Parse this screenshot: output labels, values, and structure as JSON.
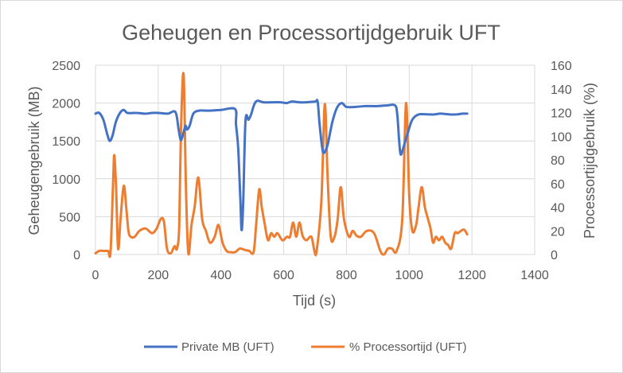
{
  "chart_data": {
    "type": "line",
    "title": "Geheugen en Processortijdgebruik UFT",
    "xlabel": "Tijd (s)",
    "ylabel": "Geheugengebruik (MB)",
    "y2label": "Processortijdgebruik (%)",
    "xlim": [
      0,
      1400
    ],
    "ylim": [
      0,
      2500
    ],
    "y2lim": [
      0,
      160
    ],
    "xticks": [
      "0",
      "200",
      "400",
      "600",
      "800",
      "1000",
      "1200",
      "1400"
    ],
    "yticks": [
      "0",
      "500",
      "1000",
      "1500",
      "2000",
      "2500"
    ],
    "y2ticks": [
      "0",
      "20",
      "40",
      "60",
      "80",
      "100",
      "120",
      "140",
      "160"
    ],
    "grid": true,
    "legend_position": "bottom",
    "series": [
      {
        "name": "Private MB (UFT)",
        "axis": "left",
        "color": "#4472c4",
        "points": [
          [
            0,
            1860
          ],
          [
            12,
            1870
          ],
          [
            25,
            1780
          ],
          [
            38,
            1580
          ],
          [
            46,
            1500
          ],
          [
            55,
            1580
          ],
          [
            65,
            1750
          ],
          [
            78,
            1870
          ],
          [
            90,
            1910
          ],
          [
            102,
            1870
          ],
          [
            130,
            1870
          ],
          [
            160,
            1860
          ],
          [
            180,
            1870
          ],
          [
            200,
            1870
          ],
          [
            230,
            1860
          ],
          [
            255,
            1880
          ],
          [
            265,
            1650
          ],
          [
            272,
            1510
          ],
          [
            280,
            1600
          ],
          [
            287,
            1700
          ],
          [
            292,
            1650
          ],
          [
            300,
            1700
          ],
          [
            312,
            1860
          ],
          [
            330,
            1900
          ],
          [
            360,
            1900
          ],
          [
            400,
            1910
          ],
          [
            445,
            1920
          ],
          [
            448,
            1720
          ],
          [
            455,
            1400
          ],
          [
            462,
            700
          ],
          [
            466,
            320
          ],
          [
            471,
            700
          ],
          [
            478,
            1760
          ],
          [
            488,
            1780
          ],
          [
            496,
            1850
          ],
          [
            506,
            1980
          ],
          [
            516,
            2030
          ],
          [
            535,
            2010
          ],
          [
            560,
            2010
          ],
          [
            590,
            2010
          ],
          [
            610,
            2000
          ],
          [
            625,
            2020
          ],
          [
            650,
            2010
          ],
          [
            670,
            2010
          ],
          [
            700,
            2020
          ],
          [
            708,
            2020
          ],
          [
            714,
            1740
          ],
          [
            722,
            1430
          ],
          [
            728,
            1340
          ],
          [
            740,
            1450
          ],
          [
            755,
            1750
          ],
          [
            770,
            1940
          ],
          [
            785,
            2000
          ],
          [
            800,
            1950
          ],
          [
            830,
            1950
          ],
          [
            860,
            1960
          ],
          [
            900,
            1960
          ],
          [
            930,
            1970
          ],
          [
            955,
            1970
          ],
          [
            962,
            1850
          ],
          [
            968,
            1500
          ],
          [
            973,
            1320
          ],
          [
            982,
            1420
          ],
          [
            995,
            1600
          ],
          [
            1010,
            1780
          ],
          [
            1030,
            1850
          ],
          [
            1060,
            1850
          ],
          [
            1080,
            1850
          ],
          [
            1100,
            1860
          ],
          [
            1130,
            1850
          ],
          [
            1150,
            1850
          ],
          [
            1170,
            1860
          ],
          [
            1185,
            1860
          ]
        ]
      },
      {
        "name": "% Processortijd (UFT)",
        "axis": "right",
        "color": "#ed7d31",
        "points": [
          [
            0,
            1
          ],
          [
            12,
            3
          ],
          [
            28,
            3
          ],
          [
            40,
            3
          ],
          [
            48,
            2
          ],
          [
            56,
            60
          ],
          [
            60,
            84
          ],
          [
            66,
            55
          ],
          [
            72,
            5
          ],
          [
            80,
            30
          ],
          [
            90,
            58
          ],
          [
            98,
            40
          ],
          [
            105,
            20
          ],
          [
            112,
            15
          ],
          [
            125,
            15
          ],
          [
            140,
            20
          ],
          [
            160,
            22
          ],
          [
            180,
            18
          ],
          [
            195,
            22
          ],
          [
            208,
            30
          ],
          [
            218,
            28
          ],
          [
            228,
            5
          ],
          [
            240,
            1
          ],
          [
            252,
            7
          ],
          [
            260,
            5
          ],
          [
            267,
            25
          ],
          [
            273,
            110
          ],
          [
            281,
            152
          ],
          [
            288,
            60
          ],
          [
            296,
            1
          ],
          [
            306,
            25
          ],
          [
            316,
            40
          ],
          [
            328,
            65
          ],
          [
            340,
            30
          ],
          [
            352,
            20
          ],
          [
            365,
            10
          ],
          [
            380,
            15
          ],
          [
            392,
            25
          ],
          [
            405,
            10
          ],
          [
            418,
            3
          ],
          [
            430,
            2
          ],
          [
            445,
            2
          ],
          [
            460,
            5
          ],
          [
            475,
            4
          ],
          [
            490,
            3
          ],
          [
            504,
            2
          ],
          [
            512,
            25
          ],
          [
            522,
            55
          ],
          [
            530,
            40
          ],
          [
            540,
            25
          ],
          [
            550,
            12
          ],
          [
            560,
            18
          ],
          [
            570,
            15
          ],
          [
            580,
            18
          ],
          [
            596,
            12
          ],
          [
            610,
            15
          ],
          [
            620,
            15
          ],
          [
            630,
            27
          ],
          [
            640,
            15
          ],
          [
            650,
            27
          ],
          [
            660,
            16
          ],
          [
            672,
            12
          ],
          [
            688,
            15
          ],
          [
            698,
            3
          ],
          [
            705,
            3
          ],
          [
            720,
            45
          ],
          [
            731,
            127
          ],
          [
            740,
            65
          ],
          [
            750,
            15
          ],
          [
            762,
            15
          ],
          [
            772,
            30
          ],
          [
            782,
            57
          ],
          [
            792,
            30
          ],
          [
            808,
            15
          ],
          [
            820,
            20
          ],
          [
            832,
            16
          ],
          [
            846,
            15
          ],
          [
            865,
            20
          ],
          [
            888,
            18
          ],
          [
            908,
            3
          ],
          [
            920,
            0
          ],
          [
            932,
            5
          ],
          [
            945,
            5
          ],
          [
            960,
            3
          ],
          [
            978,
            30
          ],
          [
            990,
            128
          ],
          [
            1000,
            50
          ],
          [
            1010,
            20
          ],
          [
            1022,
            25
          ],
          [
            1030,
            40
          ],
          [
            1040,
            57
          ],
          [
            1050,
            40
          ],
          [
            1060,
            30
          ],
          [
            1068,
            22
          ],
          [
            1076,
            10
          ],
          [
            1085,
            15
          ],
          [
            1095,
            12
          ],
          [
            1105,
            15
          ],
          [
            1115,
            10
          ],
          [
            1124,
            8
          ],
          [
            1134,
            5
          ],
          [
            1145,
            18
          ],
          [
            1155,
            18
          ],
          [
            1165,
            20
          ],
          [
            1175,
            21
          ],
          [
            1185,
            17
          ]
        ]
      }
    ]
  }
}
